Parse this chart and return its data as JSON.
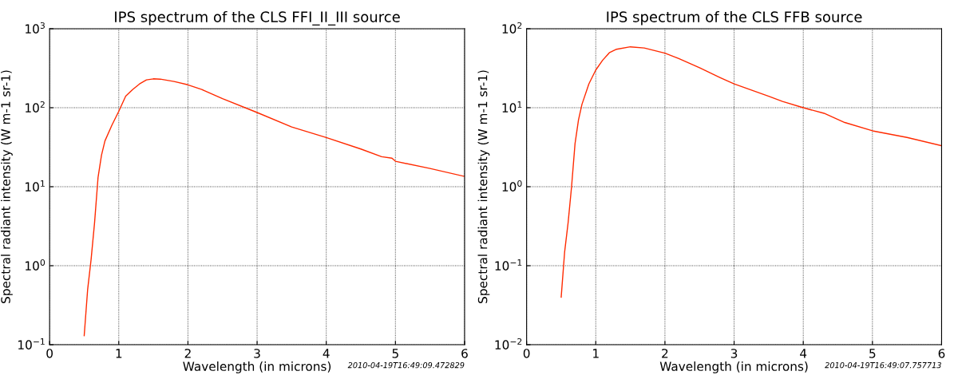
{
  "chart_data": [
    {
      "type": "line",
      "title": "IPS spectrum of the CLS FFI_II_III source",
      "xlabel": "Wavelength (in microns)",
      "ylabel": "Spectral radiant intensity (W m-1 sr-1)",
      "log": "y",
      "grid": true,
      "line_style": "solid",
      "marker": "none",
      "xlim": [
        0,
        6
      ],
      "xticks": [
        0,
        1,
        2,
        3,
        4,
        5,
        6
      ],
      "ylim": [
        0.1,
        1000
      ],
      "yticks": [
        {
          "value": 0.1,
          "label": "10$^{−1}$"
        },
        {
          "value": 1,
          "label": "10$^{0}$"
        },
        {
          "value": 10,
          "label": "10$^{1}$"
        },
        {
          "value": 100,
          "label": "10$^{2}$"
        },
        {
          "value": 1000,
          "label": "10$^{3}$"
        }
      ],
      "annotations": [
        "2010-04-19T16:49:09.472829"
      ],
      "series": [
        {
          "color": "#ff2a00",
          "x": [
            0.5,
            0.55,
            0.6,
            0.65,
            0.7,
            0.75,
            0.8,
            0.9,
            1.0,
            1.1,
            1.2,
            1.3,
            1.4,
            1.5,
            1.6,
            1.8,
            2.0,
            2.2,
            2.5,
            3.0,
            3.5,
            4.0,
            4.5,
            4.8,
            4.95,
            5.0,
            5.5,
            6.0
          ],
          "values": [
            0.13,
            0.5,
            1.2,
            3.5,
            13,
            25,
            38,
            60,
            90,
            140,
            170,
            200,
            225,
            232,
            230,
            215,
            195,
            170,
            130,
            87,
            57,
            42,
            30,
            24,
            23,
            21,
            17,
            13.5
          ]
        }
      ]
    },
    {
      "type": "line",
      "title": "IPS spectrum of the CLS FFB source",
      "xlabel": "Wavelength (in microns)",
      "ylabel": "Spectral radiant intensity (W m-1 sr-1)",
      "log": "y",
      "grid": true,
      "line_style": "solid",
      "marker": "none",
      "xlim": [
        0,
        6
      ],
      "xticks": [
        0,
        1,
        2,
        3,
        4,
        5,
        6
      ],
      "ylim": [
        0.01,
        100
      ],
      "yticks": [
        {
          "value": 0.01,
          "label": "10$^{−2}$"
        },
        {
          "value": 0.1,
          "label": "10$^{−1}$"
        },
        {
          "value": 1,
          "label": "10$^{0}$"
        },
        {
          "value": 10,
          "label": "10$^{1}$"
        },
        {
          "value": 100,
          "label": "10$^{2}$"
        }
      ],
      "annotations": [
        "2010-04-19T16:49:07.757713"
      ],
      "series": [
        {
          "color": "#ff2a00",
          "x": [
            0.5,
            0.55,
            0.6,
            0.65,
            0.7,
            0.75,
            0.8,
            0.9,
            1.0,
            1.1,
            1.2,
            1.3,
            1.5,
            1.7,
            2.0,
            2.2,
            2.5,
            2.8,
            3.0,
            3.5,
            3.7,
            4.0,
            4.3,
            4.6,
            5.0,
            5.5,
            6.0
          ],
          "values": [
            0.04,
            0.15,
            0.35,
            1.0,
            3.5,
            7,
            11,
            20,
            30,
            40,
            50,
            55,
            59,
            57,
            49,
            42,
            32,
            24,
            20,
            14,
            12,
            10,
            8.5,
            6.5,
            5.1,
            4.2,
            3.3
          ]
        }
      ]
    }
  ]
}
